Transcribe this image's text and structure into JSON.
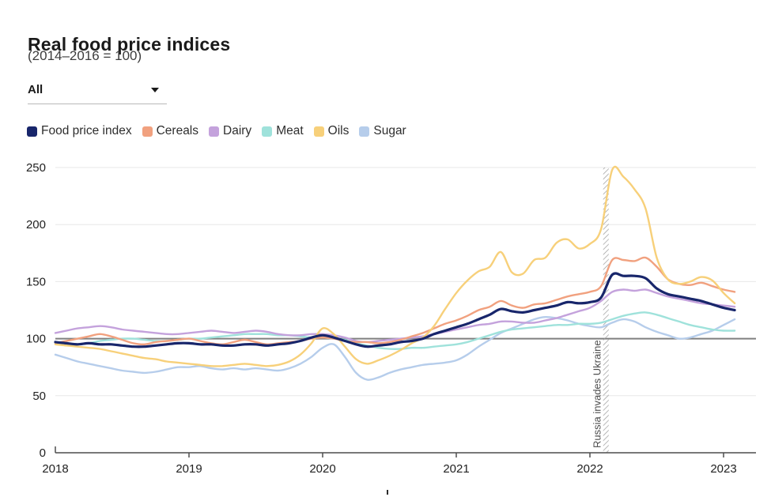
{
  "header": {
    "title": "Real food price indices",
    "subtitle": "(2014–2016 = 100)"
  },
  "filter": {
    "selected_option": "All"
  },
  "icons": {
    "dropdown_caret": "triangle-down-icon"
  },
  "colors": {
    "grid": "#e7e7e7",
    "baseline": "#7f7f7f",
    "axis": "#4d4d4d",
    "hatch": "#9a9a9a",
    "text_primary": "#1a1a1a",
    "text_secondary": "#3d3d3d"
  },
  "chart_data": {
    "type": "line",
    "title": "Real food price indices",
    "subtitle": "(2014–2016 = 100)",
    "x_start_year": 2018,
    "points_per_year": 12,
    "x_ticks": [
      "2018",
      "2019",
      "2020",
      "2021",
      "2022",
      "2023"
    ],
    "y_ticks": [
      0,
      50,
      100,
      150,
      200,
      250
    ],
    "ylim": [
      0,
      250
    ],
    "xlim": [
      2018,
      2023.17
    ],
    "grid": "horizontal",
    "baseline_value": 100,
    "legend_position": "top",
    "annotation": {
      "x_year": 2022.12,
      "label": "Russia invades Ukraine"
    },
    "series": [
      {
        "name": "Food price index",
        "color": "#18266b",
        "line_width": 3.2,
        "values": [
          97,
          96,
          95,
          96,
          95,
          95,
          94,
          93,
          93,
          94,
          95,
          96,
          96,
          95,
          95,
          94,
          94,
          95,
          95,
          94,
          95,
          96,
          98,
          101,
          103,
          101,
          98,
          95,
          93,
          94,
          95,
          97,
          98,
          100,
          104,
          107,
          110,
          113,
          117,
          121,
          126,
          124,
          123,
          125,
          127,
          129,
          132,
          131,
          132,
          136,
          156,
          155,
          155,
          153,
          144,
          139,
          137,
          135,
          133,
          130,
          127,
          125
        ]
      },
      {
        "name": "Cereals",
        "color": "#f1a17f",
        "line_width": 2.4,
        "values": [
          96,
          98,
          100,
          102,
          104,
          102,
          99,
          96,
          95,
          97,
          98,
          99,
          100,
          98,
          96,
          95,
          97,
          99,
          97,
          95,
          96,
          97,
          98,
          100,
          101,
          100,
          98,
          97,
          97,
          96,
          97,
          99,
          102,
          105,
          109,
          113,
          116,
          120,
          125,
          128,
          133,
          129,
          127,
          130,
          131,
          134,
          137,
          139,
          141,
          146,
          169,
          169,
          168,
          171,
          163,
          152,
          148,
          147,
          149,
          146,
          143,
          141
        ]
      },
      {
        "name": "Dairy",
        "color": "#c4a2dc",
        "line_width": 2.4,
        "values": [
          105,
          107,
          109,
          110,
          111,
          110,
          108,
          107,
          106,
          105,
          104,
          104,
          105,
          106,
          107,
          106,
          105,
          106,
          107,
          106,
          104,
          103,
          103,
          104,
          104,
          103,
          101,
          98,
          97,
          98,
          99,
          100,
          101,
          102,
          104,
          106,
          108,
          110,
          112,
          113,
          115,
          115,
          114,
          114,
          116,
          118,
          121,
          124,
          127,
          133,
          141,
          143,
          142,
          143,
          140,
          137,
          135,
          133,
          131,
          130,
          129,
          128
        ]
      },
      {
        "name": "Meat",
        "color": "#9fe2db",
        "line_width": 2.4,
        "values": [
          96,
          95,
          95,
          96,
          98,
          99,
          100,
          100,
          99,
          98,
          98,
          99,
          100,
          100,
          101,
          102,
          103,
          104,
          104,
          104,
          103,
          103,
          102,
          101,
          101,
          100,
          99,
          96,
          94,
          92,
          91,
          91,
          92,
          92,
          93,
          94,
          95,
          97,
          100,
          103,
          106,
          108,
          109,
          110,
          111,
          112,
          112,
          113,
          113,
          114,
          117,
          120,
          122,
          123,
          121,
          118,
          115,
          112,
          110,
          108,
          107,
          107
        ]
      },
      {
        "name": "Oils",
        "color": "#f7d07a",
        "line_width": 2.4,
        "values": [
          95,
          94,
          93,
          92,
          91,
          89,
          87,
          85,
          83,
          82,
          80,
          79,
          78,
          77,
          76,
          76,
          77,
          78,
          77,
          76,
          77,
          80,
          86,
          96,
          109,
          104,
          93,
          82,
          78,
          81,
          85,
          90,
          96,
          101,
          111,
          126,
          140,
          151,
          159,
          163,
          176,
          158,
          157,
          169,
          171,
          184,
          187,
          179,
          183,
          196,
          248,
          242,
          231,
          214,
          171,
          152,
          148,
          150,
          154,
          151,
          140,
          131
        ]
      },
      {
        "name": "Sugar",
        "color": "#b6cdeb",
        "line_width": 2.4,
        "values": [
          86,
          83,
          80,
          78,
          76,
          74,
          72,
          71,
          70,
          71,
          73,
          75,
          75,
          76,
          74,
          73,
          74,
          73,
          74,
          73,
          72,
          74,
          78,
          84,
          92,
          95,
          84,
          70,
          64,
          66,
          70,
          73,
          75,
          77,
          78,
          79,
          81,
          86,
          93,
          99,
          105,
          109,
          113,
          117,
          119,
          118,
          116,
          113,
          111,
          110,
          114,
          117,
          115,
          110,
          106,
          103,
          100,
          101,
          104,
          107,
          112,
          117
        ]
      }
    ]
  }
}
